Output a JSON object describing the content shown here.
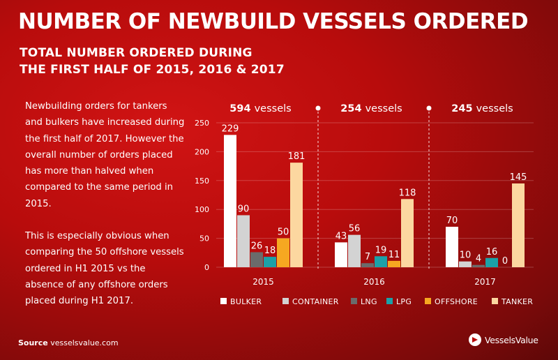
{
  "title": "NUMBER OF NEWBUILD VESSELS ORDERED",
  "subtitle_line1": "TOTAL NUMBER ORDERED DURING",
  "subtitle_line2": "THE FIRST HALF OF 2015, 2016 & 2017",
  "paragraph1": "Newbuilding orders for tankers and bulkers have increased during the first half of 2017. However the overall number of orders placed has more than halved when compared to the same period in 2015.",
  "paragraph2": "This is especially obvious when comparing the 50 offshore vessels ordered in H1 2015 vs the absence of any offshore orders placed during H1 2017.",
  "source_label": "Source",
  "source_value": "vesselsvalue.com",
  "logo_text": "VesselsValue",
  "colors": {
    "BULKER": "#ffffff",
    "CONTAINER": "#d3d3d3",
    "LNG": "#6b6b6b",
    "LPG": "#1ba1a8",
    "OFFSHORE": "#f6a821",
    "TANKER": "#fcd7a0"
  },
  "chart_data": {
    "type": "bar",
    "categories": [
      "2015",
      "2016",
      "2017"
    ],
    "group_totals": [
      {
        "number": "594",
        "unit": "vessels"
      },
      {
        "number": "254",
        "unit": "vessels"
      },
      {
        "number": "245",
        "unit": "vessels"
      }
    ],
    "series": [
      {
        "name": "BULKER",
        "values": [
          229,
          43,
          70
        ]
      },
      {
        "name": "CONTAINER",
        "values": [
          90,
          56,
          10
        ]
      },
      {
        "name": "LNG",
        "values": [
          26,
          7,
          4
        ]
      },
      {
        "name": "LPG",
        "values": [
          18,
          19,
          16
        ]
      },
      {
        "name": "OFFSHORE",
        "values": [
          50,
          11,
          0
        ]
      },
      {
        "name": "TANKER",
        "values": [
          181,
          118,
          145
        ]
      }
    ],
    "yticks": [
      0,
      50,
      100,
      150,
      200,
      250
    ],
    "ylim": [
      0,
      250
    ],
    "grid": true,
    "legend": "bottom"
  }
}
